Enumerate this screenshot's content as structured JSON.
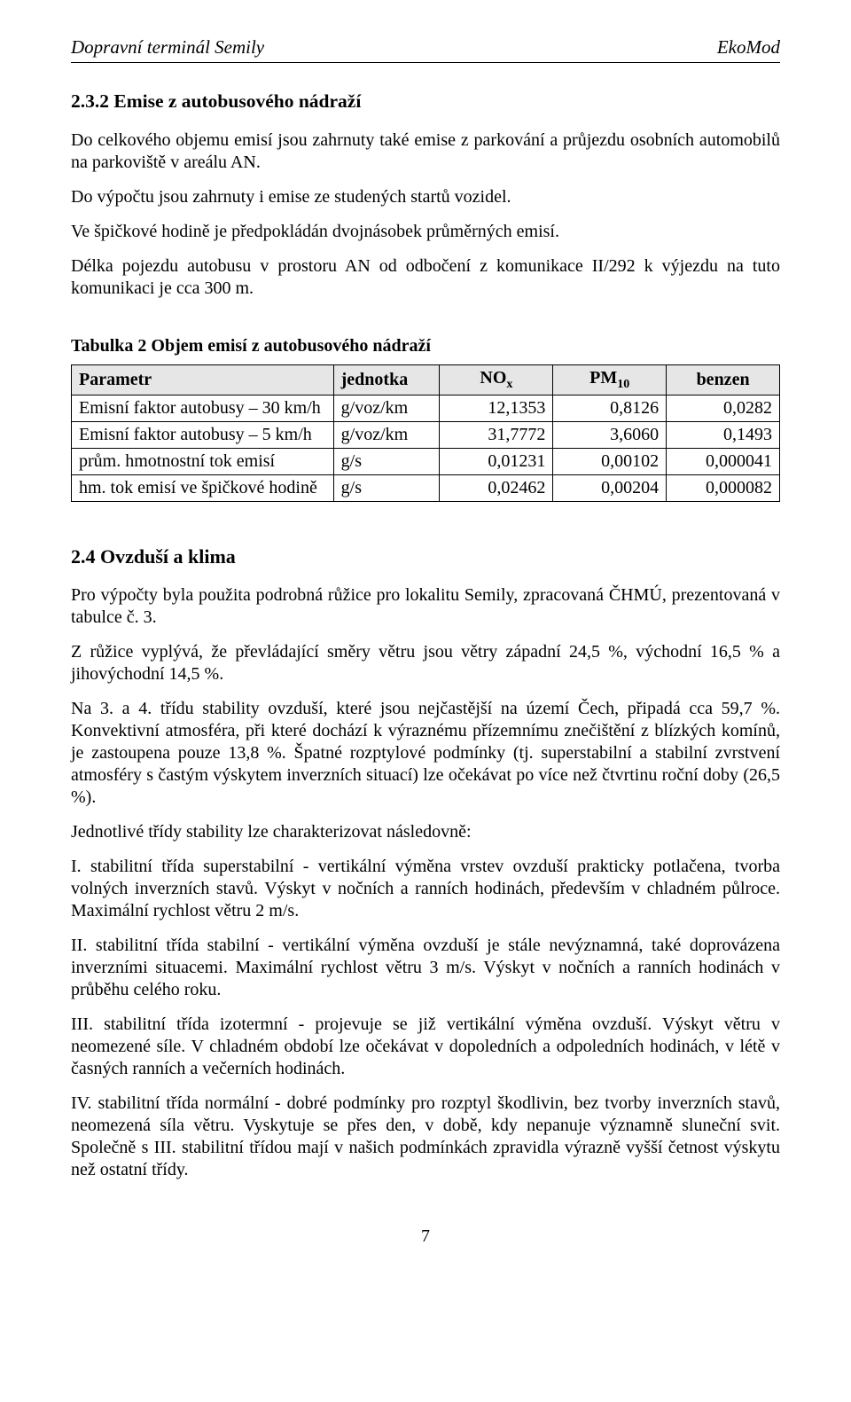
{
  "header": {
    "left": "Dopravní terminál Semily",
    "right": "EkoMod"
  },
  "section232": {
    "title": "2.3.2  Emise z autobusového nádraží",
    "p1": "Do celkového objemu emisí jsou zahrnuty také emise z parkování a průjezdu osobních automobilů na parkoviště v areálu AN.",
    "p2": "Do výpočtu jsou zahrnuty i emise ze studených startů vozidel.",
    "p3": "Ve špičkové hodině je předpokládán dvojnásobek průměrných emisí.",
    "p4": "Délka pojezdu autobusu v prostoru AN od odbočení z komunikace II/292 k výjezdu na tuto komunikaci je cca 300 m."
  },
  "table2": {
    "caption": "Tabulka 2  Objem emisí z autobusového nádraží",
    "columns": {
      "param": "Parametr",
      "unit": "jednotka",
      "nox_html": "NO<span class=\"sub\">x</span>",
      "pm10_html": "PM<span class=\"sub\">10</span>",
      "benzen": "benzen"
    },
    "rows": [
      {
        "param": "Emisní faktor autobusy – 30 km/h",
        "unit": "g/voz/km",
        "nox": "12,1353",
        "pm10": "0,8126",
        "benzen": "0,0282"
      },
      {
        "param": "Emisní faktor autobusy – 5 km/h",
        "unit": "g/voz/km",
        "nox": "31,7772",
        "pm10": "3,6060",
        "benzen": "0,1493"
      },
      {
        "param": "prům. hmotnostní tok  emisí",
        "unit": "g/s",
        "nox": "0,01231",
        "pm10": "0,00102",
        "benzen": "0,000041"
      },
      {
        "param": "hm. tok emisí ve špičkové hodině",
        "unit": "g/s",
        "nox": "0,02462",
        "pm10": "0,00204",
        "benzen": "0,000082"
      }
    ]
  },
  "section24": {
    "title": "2.4 Ovzduší a klima",
    "p1": "Pro výpočty byla použita podrobná růžice pro lokalitu Semily, zpracovaná ČHMÚ, prezentovaná v tabulce č. 3.",
    "p2": "Z růžice vyplývá, že převládající směry větru jsou větry západní 24,5 %, východní 16,5 % a jihovýchodní 14,5 %.",
    "p3": "Na 3. a 4. třídu stability ovzduší, které jsou nejčastější na území Čech, připadá cca 59,7 %. Konvektivní atmosféra, při které dochází k výraznému přízemnímu znečištění z blízkých komínů, je zastoupena pouze 13,8 %. Špatné rozptylové podmínky (tj. superstabilní a stabilní zvrstvení atmosféry s častým výskytem inverzních situací) lze očekávat po více než čtvrtinu roční doby (26,5 %).",
    "p4": "Jednotlivé třídy stability lze charakterizovat následovně:",
    "p5": "I. stabilitní třída superstabilní - vertikální výměna vrstev ovzduší prakticky potlačena, tvorba volných inverzních stavů. Výskyt v nočních a ranních hodinách, především v chladném půlroce. Maximální rychlost větru 2 m/s.",
    "p6": "II. stabilitní třída stabilní - vertikální výměna ovzduší je stále nevýznamná, také doprovázena inverzními situacemi. Maximální rychlost větru 3 m/s. Výskyt v nočních a ranních hodinách v průběhu celého roku.",
    "p7": "III. stabilitní třída izotermní - projevuje se již vertikální výměna ovzduší. Výskyt větru v neomezené síle. V chladném období lze očekávat v dopoledních a odpoledních hodinách, v létě v časných ranních a večerních hodinách.",
    "p8": "IV. stabilitní třída normální - dobré podmínky pro rozptyl škodlivin, bez tvorby inverzních stavů, neomezená síla větru. Vyskytuje se přes den, v době, kdy nepanuje významně sluneční svit. Společně s III. stabilitní třídou mají v našich podmínkách zpravidla výrazně vyšší četnost výskytu než ostatní třídy."
  },
  "pageNumber": "7"
}
